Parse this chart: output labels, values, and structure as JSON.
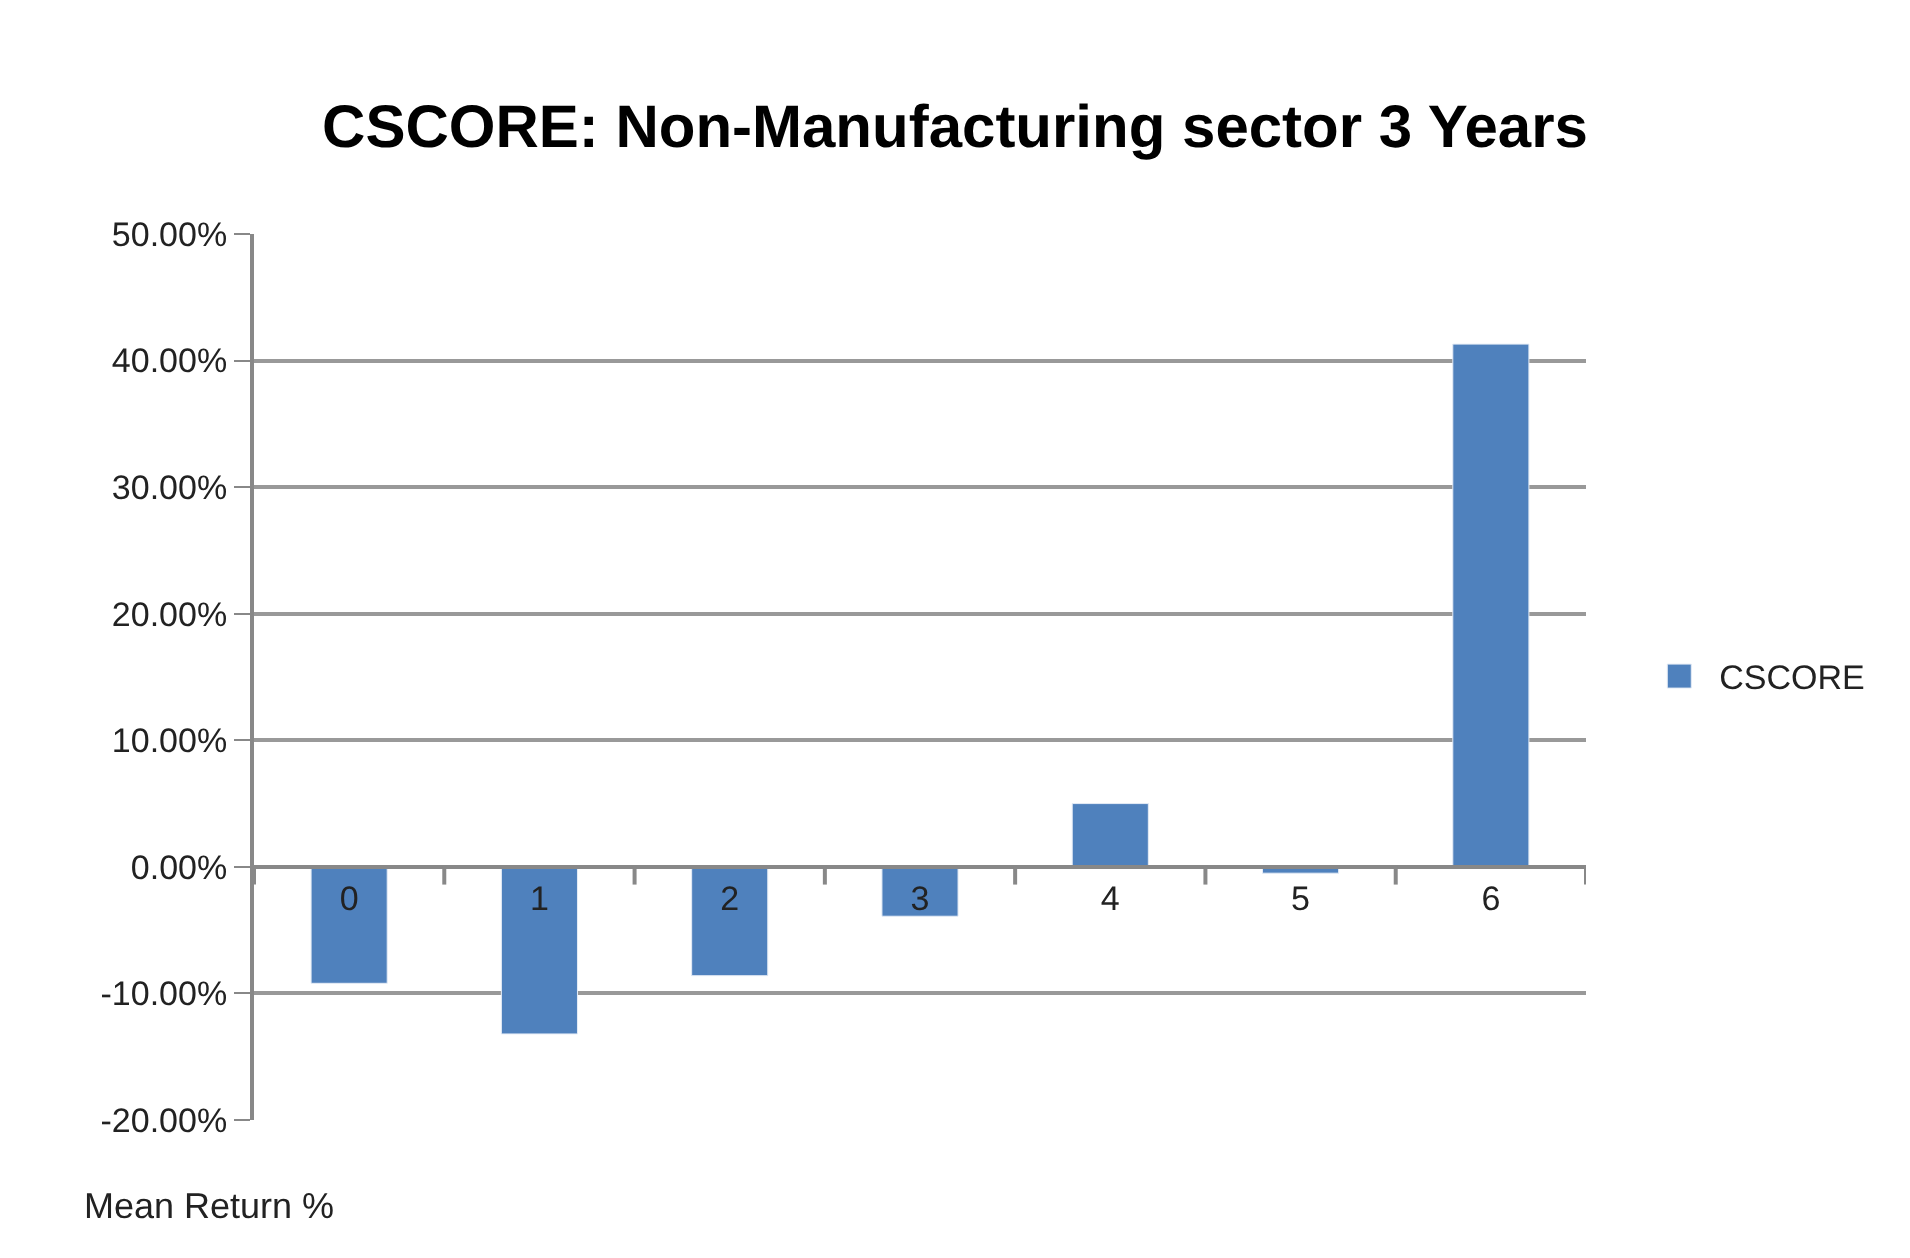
{
  "chart_data": {
    "type": "bar",
    "title": "CSCORE: Non-Manufacturing sector 3 Years",
    "xlabel": "Mean Return %",
    "categories": [
      "0",
      "1",
      "2",
      "3",
      "4",
      "5",
      "6"
    ],
    "series": [
      {
        "name": "CSCORE",
        "color": "#4f81bd",
        "values": [
          -9.2,
          -13.2,
          -8.6,
          -3.9,
          5.0,
          -0.5,
          41.3
        ]
      }
    ],
    "ylim": [
      -20,
      50
    ],
    "yticks": [
      {
        "value": -20,
        "label": "-20.00%"
      },
      {
        "value": -10,
        "label": "-10.00%"
      },
      {
        "value": 0,
        "label": "0.00%"
      },
      {
        "value": 10,
        "label": "10.00%"
      },
      {
        "value": 20,
        "label": "20.00%"
      },
      {
        "value": 30,
        "label": "30.00%"
      },
      {
        "value": 40,
        "label": "40.00%"
      },
      {
        "value": 50,
        "label": "50.00%"
      }
    ],
    "grid": "y",
    "legend": "right"
  }
}
